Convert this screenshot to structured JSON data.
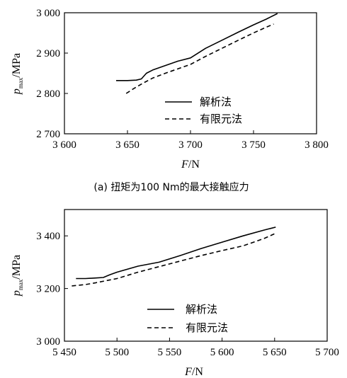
{
  "chart_data": [
    {
      "type": "line",
      "caption": "(a) 扭矩为100 Nm的最大接触应力",
      "xlabel": "F/N",
      "ylabel": "pmax/MPa",
      "xlim": [
        3600,
        3800
      ],
      "ylim": [
        2700,
        3000
      ],
      "xticks": [
        3600,
        3650,
        3700,
        3750,
        3800
      ],
      "xtick_labels": [
        "3 600",
        "3 650",
        "3 700",
        "3 750",
        "3 800"
      ],
      "yticks": [
        2700,
        2800,
        2900,
        3000
      ],
      "ytick_labels": [
        "2 700",
        "2 800",
        "2 900",
        "3 000"
      ],
      "legend_position": "lower-right",
      "series": [
        {
          "name": "解析法",
          "style": "solid",
          "x": [
            3641,
            3650,
            3657,
            3661,
            3665,
            3670,
            3679,
            3690,
            3700,
            3712,
            3725,
            3738,
            3750,
            3760,
            3769
          ],
          "y": [
            2832,
            2832,
            2833,
            2836,
            2850,
            2858,
            2868,
            2880,
            2888,
            2912,
            2932,
            2952,
            2970,
            2984,
            2998
          ]
        },
        {
          "name": "有限元法",
          "style": "dashed",
          "x": [
            3649,
            3656,
            3662,
            3670,
            3680,
            3690,
            3700,
            3712,
            3725,
            3738,
            3750,
            3760,
            3766
          ],
          "y": [
            2800,
            2814,
            2825,
            2838,
            2850,
            2861,
            2872,
            2892,
            2912,
            2932,
            2950,
            2964,
            2972
          ]
        }
      ]
    },
    {
      "type": "line",
      "xlabel": "F/N",
      "ylabel": "pmax/MPa",
      "xlim": [
        5450,
        5700
      ],
      "ylim": [
        3000,
        3500
      ],
      "xticks": [
        5450,
        5500,
        5550,
        5600,
        5650,
        5700
      ],
      "xtick_labels": [
        "5 450",
        "5 500",
        "5 550",
        "5 600",
        "5 650",
        "5 700"
      ],
      "yticks": [
        3000,
        3200,
        3400
      ],
      "ytick_labels": [
        "3 000",
        "3 200",
        "3 400"
      ],
      "legend_position": "lower-right",
      "series": [
        {
          "name": "解析法",
          "style": "solid",
          "x": [
            5461,
            5470,
            5480,
            5487,
            5493,
            5500,
            5520,
            5540,
            5560,
            5580,
            5600,
            5620,
            5640,
            5651
          ],
          "y": [
            3238,
            3238,
            3240,
            3242,
            3252,
            3262,
            3285,
            3300,
            3325,
            3352,
            3376,
            3400,
            3422,
            3433
          ]
        },
        {
          "name": "有限元法",
          "style": "dashed",
          "x": [
            5457,
            5470,
            5480,
            5490,
            5500,
            5520,
            5540,
            5560,
            5580,
            5600,
            5620,
            5640,
            5651
          ],
          "y": [
            3210,
            3215,
            3222,
            3230,
            3238,
            3262,
            3283,
            3304,
            3325,
            3344,
            3362,
            3390,
            3410
          ]
        }
      ]
    }
  ]
}
